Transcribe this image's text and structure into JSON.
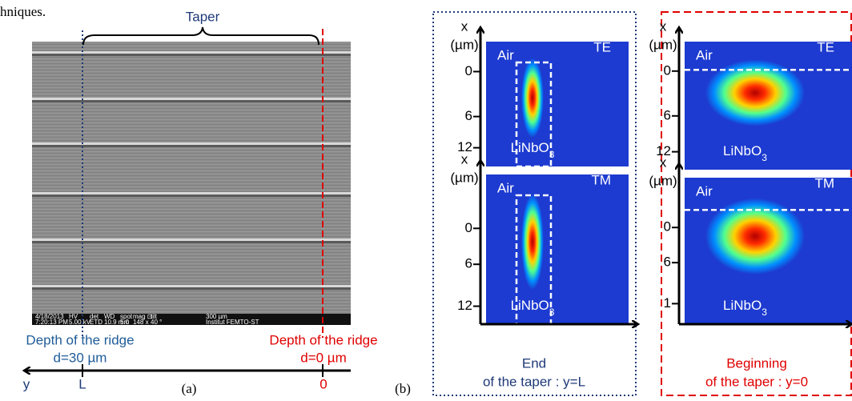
{
  "header_fragment": "hniques.",
  "panel_a": {
    "taper_label": "Taper",
    "sem_info": {
      "row1": [
        "4/18/2013",
        "HV",
        "det",
        "WD",
        "spot",
        "mag ⊡",
        "tilt",
        "300 µm"
      ],
      "row2": [
        "7:20:13 PM",
        "5.00 kV",
        "ETD",
        "10.9 mm",
        "5.0",
        "148 x",
        "40 °",
        "Institut FEMTO-ST"
      ]
    },
    "left_depth": {
      "title": "Depth of the ridge",
      "value": "d=30 µm"
    },
    "right_depth": {
      "title": "Depth of the ridge",
      "value": "d=0 µm"
    },
    "axis": {
      "label": "y",
      "marks": [
        "L",
        "0"
      ]
    },
    "caption": "(a)"
  },
  "panel_b": {
    "caption": "(b)",
    "groups": [
      {
        "footer": [
          "End",
          "of the taper : y=L"
        ],
        "plots": [
          {
            "axis_label": "x",
            "axis_unit": "(µm)",
            "top_medium": "Air",
            "mode": "TE",
            "ticks": [
              "0",
              "6",
              "12"
            ],
            "substrate": "LiNbO",
            "substrate_sub": "3"
          },
          {
            "axis_label": "x",
            "axis_unit": "(µm)",
            "top_medium": "Air",
            "mode": "TM",
            "ticks": [
              "0",
              "6",
              "12"
            ],
            "substrate": "LiNbO",
            "substrate_sub": "3"
          }
        ]
      },
      {
        "footer": [
          "Beginning",
          "of the taper : y=0"
        ],
        "plots": [
          {
            "axis_label": "x",
            "axis_unit": "(µm)",
            "top_medium": "Air",
            "mode": "TE",
            "ticks": [
              "0",
              "6",
              "12"
            ],
            "substrate": "LiNbO",
            "substrate_sub": "3"
          },
          {
            "axis_label": "x",
            "axis_unit": "(µm)",
            "top_medium": "Air",
            "mode": "TM",
            "ticks": [
              "0",
              "6",
              "1"
            ],
            "substrate": "LiNbO",
            "substrate_sub": "3"
          }
        ]
      }
    ]
  }
}
